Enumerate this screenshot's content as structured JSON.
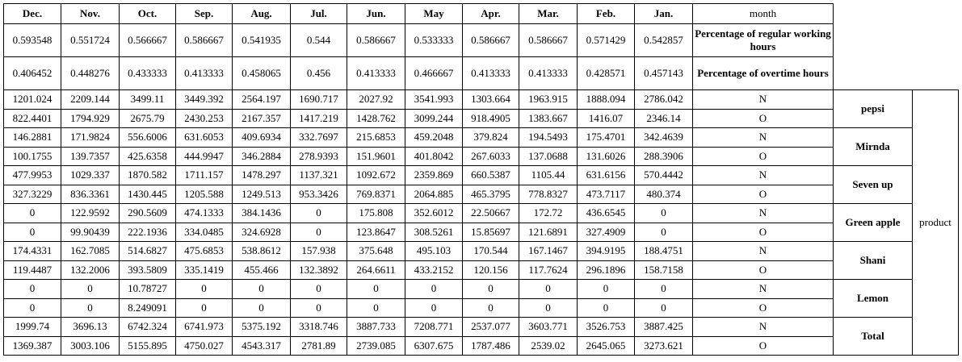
{
  "header": {
    "months": [
      "Dec.",
      "Nov.",
      "Oct.",
      "Sep.",
      "Aug.",
      "Jul.",
      "Jun.",
      "May",
      "Apr.",
      "Mar.",
      "Feb.",
      "Jan."
    ],
    "month_label": "month"
  },
  "percent_rows": [
    {
      "label": "Percentage of regular working hours",
      "values": [
        "0.593548",
        "0.551724",
        "0.566667",
        "0.586667",
        "0.541935",
        "0.544",
        "0.586667",
        "0.533333",
        "0.586667",
        "0.586667",
        "0.571429",
        "0.542857"
      ]
    },
    {
      "label": "Percentage of overtime hours",
      "values": [
        "0.406452",
        "0.448276",
        "0.433333",
        "0.413333",
        "0.458065",
        "0.456",
        "0.413333",
        "0.466667",
        "0.413333",
        "0.413333",
        "0.428571",
        "0.457143"
      ]
    }
  ],
  "product_label": "product",
  "products": [
    {
      "name": "pepsi",
      "rows": [
        {
          "type": "N",
          "values": [
            "1201.024",
            "2209.144",
            "3499.11",
            "3449.392",
            "2564.197",
            "1690.717",
            "2027.92",
            "3541.993",
            "1303.664",
            "1963.915",
            "1888.094",
            "2786.042"
          ]
        },
        {
          "type": "O",
          "values": [
            "822.4401",
            "1794.929",
            "2675.79",
            "2430.253",
            "2167.357",
            "1417.219",
            "1428.762",
            "3099.244",
            "918.4905",
            "1383.667",
            "1416.07",
            "2346.14"
          ]
        }
      ]
    },
    {
      "name": "Mirnda",
      "rows": [
        {
          "type": "N",
          "values": [
            "146.2881",
            "171.9824",
            "556.6006",
            "631.6053",
            "409.6934",
            "332.7697",
            "215.6853",
            "459.2048",
            "379.824",
            "194.5493",
            "175.4701",
            "342.4639"
          ]
        },
        {
          "type": "O",
          "values": [
            "100.1755",
            "139.7357",
            "425.6358",
            "444.9947",
            "346.2884",
            "278.9393",
            "151.9601",
            "401.8042",
            "267.6033",
            "137.0688",
            "131.6026",
            "288.3906"
          ]
        }
      ]
    },
    {
      "name": "Seven up",
      "rows": [
        {
          "type": "N",
          "values": [
            "477.9953",
            "1029.337",
            "1870.582",
            "1711.157",
            "1478.297",
            "1137.321",
            "1092.672",
            "2359.869",
            "660.5387",
            "1105.44",
            "631.6156",
            "570.4442"
          ]
        },
        {
          "type": "O",
          "values": [
            "327.3229",
            "836.3361",
            "1430.445",
            "1205.588",
            "1249.513",
            "953.3426",
            "769.8371",
            "2064.885",
            "465.3795",
            "778.8327",
            "473.7117",
            "480.374"
          ]
        }
      ]
    },
    {
      "name": "Green apple",
      "rows": [
        {
          "type": "N",
          "values": [
            "0",
            "122.9592",
            "290.5609",
            "474.1333",
            "384.1436",
            "0",
            "175.808",
            "352.6012",
            "22.50667",
            "172.72",
            "436.6545",
            "0"
          ]
        },
        {
          "type": "O",
          "values": [
            "0",
            "99.90439",
            "222.1936",
            "334.0485",
            "324.6928",
            "0",
            "123.8647",
            "308.5261",
            "15.85697",
            "121.6891",
            "327.4909",
            "0"
          ]
        }
      ]
    },
    {
      "name": "Shani",
      "rows": [
        {
          "type": "N",
          "values": [
            "174.4331",
            "162.7085",
            "514.6827",
            "475.6853",
            "538.8612",
            "157.938",
            "375.648",
            "495.103",
            "170.544",
            "167.1467",
            "394.9195",
            "188.4751"
          ]
        },
        {
          "type": "O",
          "values": [
            "119.4487",
            "132.2006",
            "393.5809",
            "335.1419",
            "455.466",
            "132.3892",
            "264.6611",
            "433.2152",
            "120.156",
            "117.7624",
            "296.1896",
            "158.7158"
          ]
        }
      ]
    },
    {
      "name": "Lemon",
      "rows": [
        {
          "type": "N",
          "values": [
            "0",
            "0",
            "10.78727",
            "0",
            "0",
            "0",
            "0",
            "0",
            "0",
            "0",
            "0",
            "0"
          ]
        },
        {
          "type": "O",
          "values": [
            "0",
            "0",
            "8.249091",
            "0",
            "0",
            "0",
            "0",
            "0",
            "0",
            "0",
            "0",
            "0"
          ]
        }
      ]
    },
    {
      "name": "Total",
      "rows": [
        {
          "type": "N",
          "values": [
            "1999.74",
            "3696.13",
            "6742.324",
            "6741.973",
            "5375.192",
            "3318.746",
            "3887.733",
            "7208.771",
            "2537.077",
            "3603.771",
            "3526.753",
            "3887.425"
          ]
        },
        {
          "type": "O",
          "values": [
            "1369.387",
            "3003.106",
            "5155.895",
            "4750.027",
            "4543.317",
            "2781.89",
            "2739.085",
            "6307.675",
            "1787.486",
            "2539.02",
            "2645.065",
            "3273.621"
          ]
        }
      ]
    }
  ]
}
